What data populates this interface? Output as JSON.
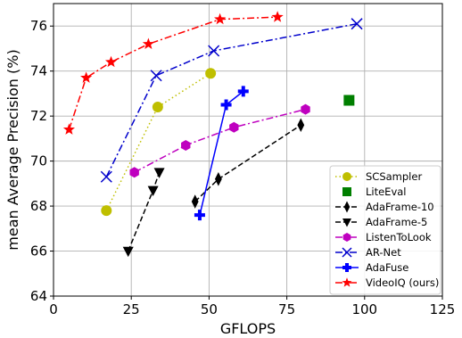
{
  "chart_data": {
    "type": "line",
    "xlabel": "GFLOPS",
    "ylabel": "mean Average Precision (%)",
    "xlim": [
      0,
      125
    ],
    "ylim": [
      64,
      77
    ],
    "x_ticks": [
      0,
      25,
      50,
      75,
      100,
      125
    ],
    "y_ticks": [
      64,
      66,
      68,
      70,
      72,
      74,
      76
    ],
    "grid": true,
    "legend_position": "lower-right",
    "series": [
      {
        "name": "SCSampler",
        "color": "#bfbf00",
        "linestyle": "dotted",
        "marker": "circle",
        "points": [
          [
            17,
            67.8
          ],
          [
            33.5,
            72.4
          ],
          [
            50.5,
            73.9
          ]
        ]
      },
      {
        "name": "LiteEval",
        "color": "#007f00",
        "linestyle": "none",
        "marker": "square",
        "points": [
          [
            95,
            72.7
          ]
        ]
      },
      {
        "name": "AdaFrame-10",
        "color": "#000000",
        "linestyle": "dashed",
        "marker": "thin-diamond",
        "points": [
          [
            45.5,
            68.2
          ],
          [
            53,
            69.2
          ],
          [
            79.5,
            71.6
          ]
        ]
      },
      {
        "name": "AdaFrame-5",
        "color": "#000000",
        "linestyle": "dashed",
        "marker": "triangle-down",
        "points": [
          [
            24,
            66.0
          ],
          [
            32,
            68.7
          ],
          [
            34,
            69.5
          ]
        ]
      },
      {
        "name": "ListenToLook",
        "color": "#bf00bf",
        "linestyle": "dashdot",
        "marker": "hexagon",
        "points": [
          [
            26,
            69.5
          ],
          [
            42.5,
            70.7
          ],
          [
            58,
            71.5
          ],
          [
            81,
            72.3
          ]
        ]
      },
      {
        "name": "AR-Net",
        "color": "#0000cc",
        "linestyle": "dashdot",
        "marker": "x",
        "points": [
          [
            17,
            69.3
          ],
          [
            33,
            73.8
          ],
          [
            51.5,
            74.9
          ],
          [
            97.5,
            76.1
          ]
        ]
      },
      {
        "name": "AdaFuse",
        "color": "#0000ff",
        "linestyle": "solid",
        "marker": "plus",
        "points": [
          [
            47,
            67.6
          ],
          [
            55.5,
            72.5
          ],
          [
            61,
            73.1
          ]
        ]
      },
      {
        "name": "VideoIQ (ours)",
        "color": "#ff0000",
        "linestyle": "dashdot",
        "marker": "star",
        "points": [
          [
            5,
            71.4
          ],
          [
            10.5,
            73.7
          ],
          [
            18.5,
            74.4
          ],
          [
            30.5,
            75.2
          ],
          [
            53.5,
            76.3
          ],
          [
            72,
            76.4
          ]
        ]
      }
    ]
  }
}
